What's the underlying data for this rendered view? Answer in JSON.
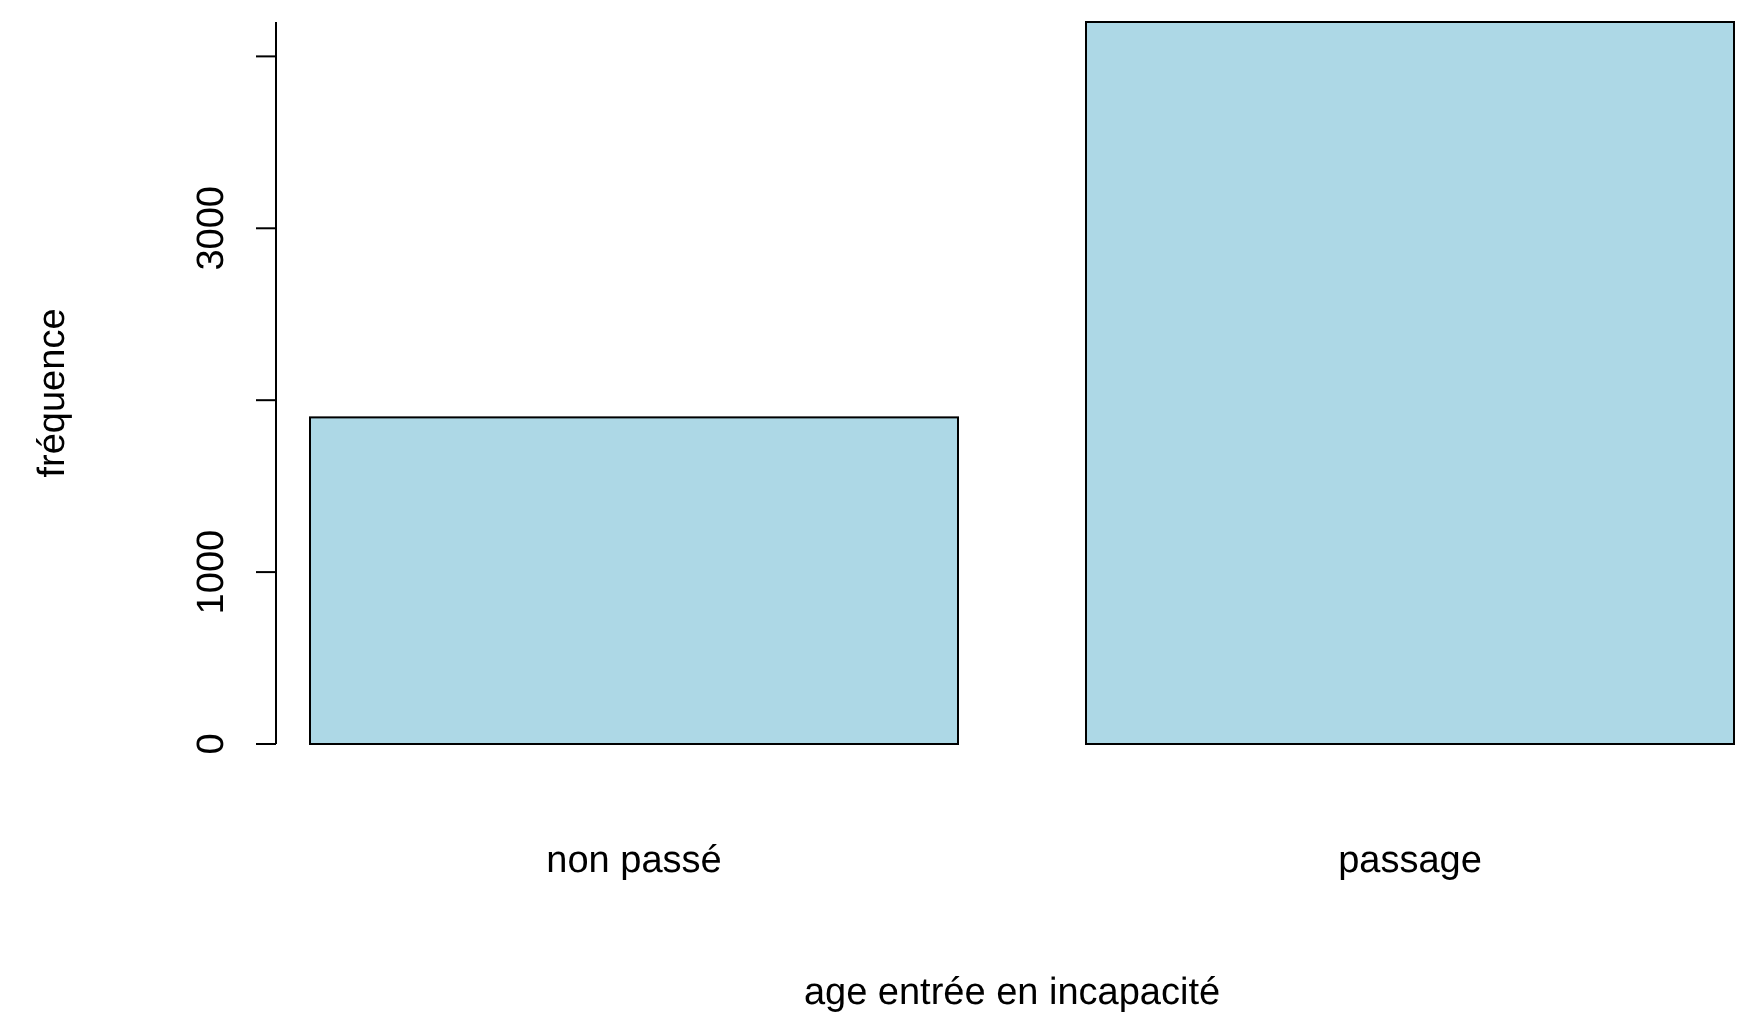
{
  "chart_data": {
    "type": "bar",
    "xlabel": "age entrée en incapacité",
    "ylabel": "fréquence",
    "categories": [
      "non passé",
      "passage"
    ],
    "values": [
      1900,
      4200
    ],
    "color": "#add8e6",
    "ylim": [
      0,
      4200
    ],
    "yticks": [
      0,
      1000,
      {
        "value": 2000,
        "label": null
      },
      3000,
      {
        "value": 4000,
        "label": null
      }
    ]
  }
}
